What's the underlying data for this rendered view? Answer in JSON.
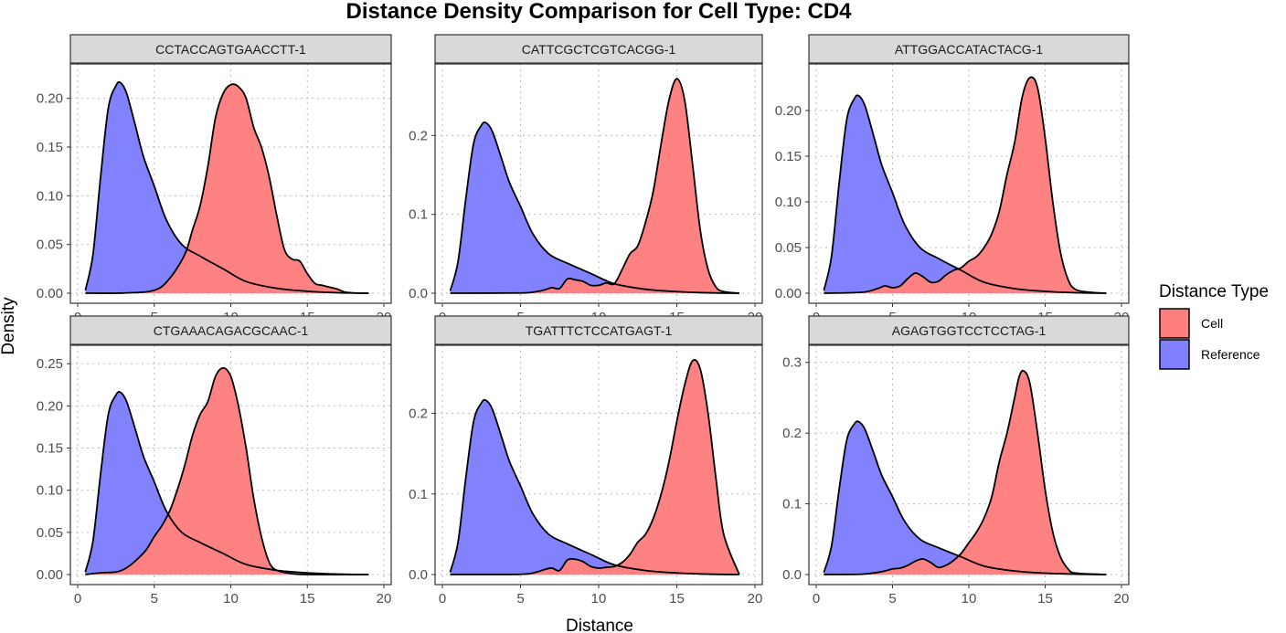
{
  "chart_data": {
    "type": "area",
    "title": "Distance Density Comparison for Cell Type: CD4",
    "xlabel": "Distance",
    "ylabel": "Density",
    "xlim": [
      0,
      20
    ],
    "x_ticks": [
      0,
      5,
      10,
      15,
      20
    ],
    "grid": true,
    "legend": {
      "title": "Distance Type",
      "placement": "right",
      "entries": [
        {
          "name": "Cell",
          "color": "#ff6b6b"
        },
        {
          "name": "Reference",
          "color": "#6b6bff"
        }
      ]
    },
    "panels": [
      {
        "label": "CCTACCAGTGAACCTT-1",
        "ylim": [
          0,
          0.225
        ],
        "y_ticks": [
          "0.00",
          "0.05",
          "0.10",
          "0.15",
          "0.20"
        ],
        "y_tick_values": [
          0,
          0.05,
          0.1,
          0.15,
          0.2
        ],
        "series": [
          {
            "name": "Reference",
            "x": [
              0.5,
              1.0,
              1.5,
              2.0,
              2.5,
              2.8,
              3.2,
              3.8,
              4.3,
              5.0,
              5.8,
              6.8,
              8.0,
              9.5,
              11.0,
              13.0,
              15.0,
              17.0,
              19.0
            ],
            "y": [
              0.003,
              0.04,
              0.12,
              0.19,
              0.213,
              0.216,
              0.205,
              0.17,
              0.14,
              0.11,
              0.075,
              0.05,
              0.038,
              0.025,
              0.012,
              0.005,
              0.002,
              0.0005,
              0.0
            ]
          },
          {
            "name": "Cell",
            "x": [
              0.5,
              3.0,
              5.0,
              6.0,
              7.0,
              7.5,
              8.0,
              8.5,
              9.0,
              9.5,
              10.0,
              10.5,
              11.0,
              11.5,
              12.0,
              12.5,
              13.0,
              13.5,
              14.0,
              14.5,
              15.0,
              15.5,
              16.0,
              16.5,
              17.0,
              17.5,
              18.5,
              19.0
            ],
            "y": [
              0.0,
              0.0002,
              0.003,
              0.015,
              0.04,
              0.065,
              0.09,
              0.13,
              0.18,
              0.205,
              0.214,
              0.212,
              0.2,
              0.17,
              0.15,
              0.12,
              0.08,
              0.045,
              0.035,
              0.033,
              0.02,
              0.01,
              0.008,
              0.006,
              0.004,
              0.001,
              0.0,
              0.0
            ]
          }
        ]
      },
      {
        "label": "CATTCGCTCGTCACGG-1",
        "ylim": [
          0,
          0.278
        ],
        "y_ticks": [
          "0.0",
          "0.1",
          "0.2"
        ],
        "y_tick_values": [
          0,
          0.1,
          0.2
        ],
        "series": [
          {
            "name": "Reference",
            "x": [
              0.5,
              1.0,
              1.5,
              2.0,
              2.5,
              2.8,
              3.2,
              3.8,
              4.3,
              5.0,
              5.8,
              6.8,
              8.0,
              9.5,
              11.0,
              13.0,
              15.0,
              17.0,
              19.0
            ],
            "y": [
              0.003,
              0.04,
              0.12,
              0.19,
              0.213,
              0.216,
              0.205,
              0.17,
              0.14,
              0.11,
              0.075,
              0.05,
              0.038,
              0.025,
              0.012,
              0.005,
              0.002,
              0.0005,
              0.0
            ]
          },
          {
            "name": "Cell",
            "x": [
              0.5,
              5.0,
              6.0,
              6.5,
              7.0,
              7.5,
              8.0,
              8.5,
              9.0,
              9.5,
              10.0,
              10.5,
              11.0,
              11.5,
              12.0,
              12.5,
              13.0,
              13.5,
              14.0,
              14.5,
              15.0,
              15.5,
              16.0,
              16.5,
              17.0,
              17.5,
              18.0,
              19.0
            ],
            "y": [
              0.0,
              0.0003,
              0.002,
              0.004,
              0.007,
              0.006,
              0.018,
              0.017,
              0.015,
              0.01,
              0.01,
              0.013,
              0.012,
              0.03,
              0.05,
              0.06,
              0.09,
              0.13,
              0.19,
              0.245,
              0.272,
              0.245,
              0.165,
              0.08,
              0.03,
              0.008,
              0.002,
              0.0
            ]
          }
        ]
      },
      {
        "label": "ATTGGACCATACTACG-1",
        "ylim": [
          0,
          0.24
        ],
        "y_ticks": [
          "0.00",
          "0.05",
          "0.10",
          "0.15",
          "0.20"
        ],
        "y_tick_values": [
          0,
          0.05,
          0.1,
          0.15,
          0.2
        ],
        "series": [
          {
            "name": "Reference",
            "x": [
              0.5,
              1.0,
              1.5,
              2.0,
              2.5,
              2.8,
              3.2,
              3.8,
              4.3,
              5.0,
              5.8,
              6.8,
              8.0,
              9.5,
              11.0,
              13.0,
              15.0,
              17.0,
              19.0
            ],
            "y": [
              0.003,
              0.04,
              0.12,
              0.19,
              0.213,
              0.216,
              0.205,
              0.17,
              0.14,
              0.11,
              0.075,
              0.05,
              0.038,
              0.025,
              0.012,
              0.005,
              0.002,
              0.0005,
              0.0
            ]
          },
          {
            "name": "Cell",
            "x": [
              0.5,
              3.0,
              4.0,
              4.5,
              5.0,
              5.5,
              6.0,
              6.5,
              7.0,
              7.5,
              8.0,
              8.5,
              9.0,
              9.5,
              10.0,
              10.5,
              11.0,
              11.5,
              12.0,
              12.5,
              13.0,
              13.5,
              14.0,
              14.5,
              15.0,
              15.5,
              16.0,
              16.5,
              17.0,
              18.0,
              19.0
            ],
            "y": [
              0.0,
              0.001,
              0.005,
              0.008,
              0.006,
              0.008,
              0.016,
              0.022,
              0.018,
              0.012,
              0.013,
              0.02,
              0.025,
              0.028,
              0.035,
              0.04,
              0.05,
              0.065,
              0.09,
              0.13,
              0.165,
              0.215,
              0.236,
              0.225,
              0.17,
              0.1,
              0.045,
              0.015,
              0.004,
              0.001,
              0.0
            ]
          }
        ]
      },
      {
        "label": "CTGAAACAGACGCAAC-1",
        "ylim": [
          0,
          0.26
        ],
        "y_ticks": [
          "0.00",
          "0.05",
          "0.10",
          "0.15",
          "0.20",
          "0.25"
        ],
        "y_tick_values": [
          0,
          0.05,
          0.1,
          0.15,
          0.2,
          0.25
        ],
        "series": [
          {
            "name": "Reference",
            "x": [
              0.5,
              1.0,
              1.5,
              2.0,
              2.5,
              2.8,
              3.2,
              3.8,
              4.3,
              5.0,
              5.8,
              6.8,
              8.0,
              9.5,
              11.0,
              13.0,
              15.0,
              17.0,
              19.0
            ],
            "y": [
              0.003,
              0.04,
              0.12,
              0.19,
              0.213,
              0.216,
              0.205,
              0.17,
              0.14,
              0.11,
              0.075,
              0.05,
              0.038,
              0.025,
              0.012,
              0.005,
              0.002,
              0.0005,
              0.0
            ]
          },
          {
            "name": "Cell",
            "x": [
              0.5,
              1.5,
              2.5,
              3.0,
              3.5,
              4.0,
              4.5,
              5.0,
              5.5,
              6.0,
              6.5,
              7.0,
              7.5,
              8.0,
              8.5,
              9.0,
              9.5,
              10.0,
              10.5,
              11.0,
              11.5,
              12.0,
              12.5,
              13.0,
              14.0,
              15.0,
              19.0
            ],
            "y": [
              0.0,
              0.002,
              0.003,
              0.006,
              0.012,
              0.02,
              0.03,
              0.045,
              0.058,
              0.075,
              0.1,
              0.13,
              0.165,
              0.19,
              0.205,
              0.235,
              0.245,
              0.235,
              0.2,
              0.15,
              0.09,
              0.045,
              0.015,
              0.005,
              0.001,
              0.0,
              0.0
            ]
          }
        ]
      },
      {
        "label": "TGATTTCTCCATGAGT-1",
        "ylim": [
          0,
          0.272
        ],
        "y_ticks": [
          "0.0",
          "0.1",
          "0.2"
        ],
        "y_tick_values": [
          0,
          0.1,
          0.2
        ],
        "series": [
          {
            "name": "Reference",
            "x": [
              0.5,
              1.0,
              1.5,
              2.0,
              2.5,
              2.8,
              3.2,
              3.8,
              4.3,
              5.0,
              5.8,
              6.8,
              8.0,
              9.5,
              11.0,
              13.0,
              15.0,
              17.0,
              19.0
            ],
            "y": [
              0.003,
              0.04,
              0.12,
              0.19,
              0.213,
              0.216,
              0.205,
              0.17,
              0.14,
              0.11,
              0.075,
              0.05,
              0.038,
              0.025,
              0.012,
              0.005,
              0.002,
              0.0005,
              0.0
            ]
          },
          {
            "name": "Cell",
            "x": [
              0.5,
              5.0,
              6.0,
              6.5,
              7.0,
              7.5,
              8.0,
              8.5,
              9.0,
              9.5,
              10.0,
              10.5,
              11.0,
              11.5,
              12.0,
              12.5,
              13.0,
              13.5,
              14.0,
              14.5,
              15.0,
              15.5,
              16.0,
              16.5,
              17.0,
              17.5,
              18.0,
              19.0
            ],
            "y": [
              0.0,
              0.0003,
              0.003,
              0.006,
              0.008,
              0.005,
              0.018,
              0.019,
              0.016,
              0.01,
              0.008,
              0.009,
              0.01,
              0.015,
              0.025,
              0.04,
              0.05,
              0.07,
              0.1,
              0.14,
              0.19,
              0.235,
              0.265,
              0.255,
              0.2,
              0.12,
              0.05,
              0.0
            ]
          }
        ]
      },
      {
        "label": "AGAGTGGTCCTCCTAG-1",
        "ylim": [
          0,
          0.31
        ],
        "y_ticks": [
          "0.0",
          "0.1",
          "0.2",
          "0.3"
        ],
        "y_tick_values": [
          0,
          0.1,
          0.2,
          0.3
        ],
        "series": [
          {
            "name": "Reference",
            "x": [
              0.5,
              1.0,
              1.5,
              2.0,
              2.5,
              2.8,
              3.2,
              3.8,
              4.3,
              5.0,
              5.8,
              6.8,
              8.0,
              9.5,
              11.0,
              13.0,
              15.0,
              17.0,
              19.0
            ],
            "y": [
              0.003,
              0.04,
              0.12,
              0.19,
              0.213,
              0.216,
              0.205,
              0.17,
              0.14,
              0.11,
              0.075,
              0.05,
              0.038,
              0.025,
              0.012,
              0.005,
              0.002,
              0.0005,
              0.0
            ]
          },
          {
            "name": "Cell",
            "x": [
              0.5,
              3.0,
              4.0,
              4.5,
              5.0,
              5.5,
              6.0,
              6.5,
              7.0,
              7.5,
              8.0,
              8.5,
              9.0,
              9.5,
              10.0,
              10.5,
              11.0,
              11.5,
              12.0,
              12.5,
              13.0,
              13.3,
              13.6,
              14.0,
              14.5,
              15.0,
              15.5,
              16.0,
              16.5,
              17.0,
              19.0
            ],
            "y": [
              0.0,
              0.0005,
              0.003,
              0.005,
              0.008,
              0.009,
              0.013,
              0.019,
              0.022,
              0.017,
              0.01,
              0.013,
              0.02,
              0.03,
              0.045,
              0.06,
              0.08,
              0.11,
              0.16,
              0.2,
              0.25,
              0.28,
              0.288,
              0.27,
              0.2,
              0.12,
              0.06,
              0.025,
              0.008,
              0.002,
              0.0
            ]
          }
        ]
      }
    ]
  }
}
